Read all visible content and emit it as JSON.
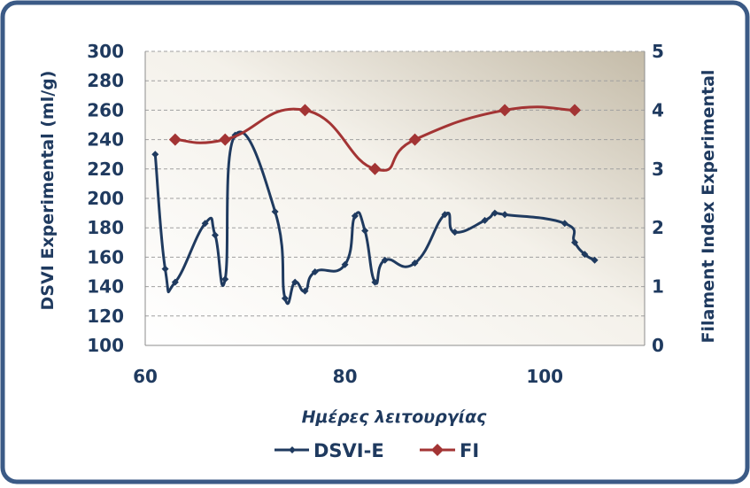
{
  "chart_data": {
    "type": "line",
    "title": "",
    "xlabel": "Ημέρες λειτουργίας",
    "ylabel": "DSVI Experimental (ml/g)",
    "y2label": "Filament Index Experimental",
    "xlim": [
      60,
      110
    ],
    "ylim": [
      100,
      300
    ],
    "y2lim": [
      0,
      5
    ],
    "xticks": [
      60,
      80,
      100
    ],
    "yticks": [
      100,
      120,
      140,
      160,
      180,
      200,
      220,
      240,
      260,
      280,
      300
    ],
    "y2ticks": [
      0,
      1,
      2,
      3,
      4,
      5
    ],
    "grid": true,
    "legend_position": "bottom",
    "series": [
      {
        "name": "DSVI-E",
        "axis": "left",
        "color": "#1f3a5f",
        "marker": "diamond-small",
        "points": [
          [
            61,
            230
          ],
          [
            62,
            152
          ],
          [
            63,
            143
          ],
          [
            66,
            183
          ],
          [
            67,
            175
          ],
          [
            68,
            145
          ],
          [
            69,
            243
          ],
          [
            73,
            191
          ],
          [
            74,
            132
          ],
          [
            75,
            143
          ],
          [
            76,
            137
          ],
          [
            77,
            150
          ],
          [
            80,
            155
          ],
          [
            81,
            188
          ],
          [
            82,
            178
          ],
          [
            83,
            143
          ],
          [
            84,
            158
          ],
          [
            87,
            156
          ],
          [
            90,
            189
          ],
          [
            91,
            177
          ],
          [
            94,
            185
          ],
          [
            95,
            190
          ],
          [
            96,
            189
          ],
          [
            102,
            183
          ],
          [
            103,
            170
          ],
          [
            104,
            162
          ],
          [
            105,
            158
          ]
        ]
      },
      {
        "name": "FI",
        "axis": "right",
        "color": "#a33434",
        "marker": "diamond-large",
        "points": [
          [
            63,
            3.5
          ],
          [
            68,
            3.5
          ],
          [
            76,
            4.0
          ],
          [
            83,
            3.0
          ],
          [
            87,
            3.5
          ],
          [
            96,
            4.0
          ],
          [
            103,
            4.0
          ]
        ]
      }
    ]
  },
  "colors": {
    "frame_border": "#3b5a86",
    "axis_text": "#1f3a5f",
    "grid": "#a0a0a0"
  }
}
